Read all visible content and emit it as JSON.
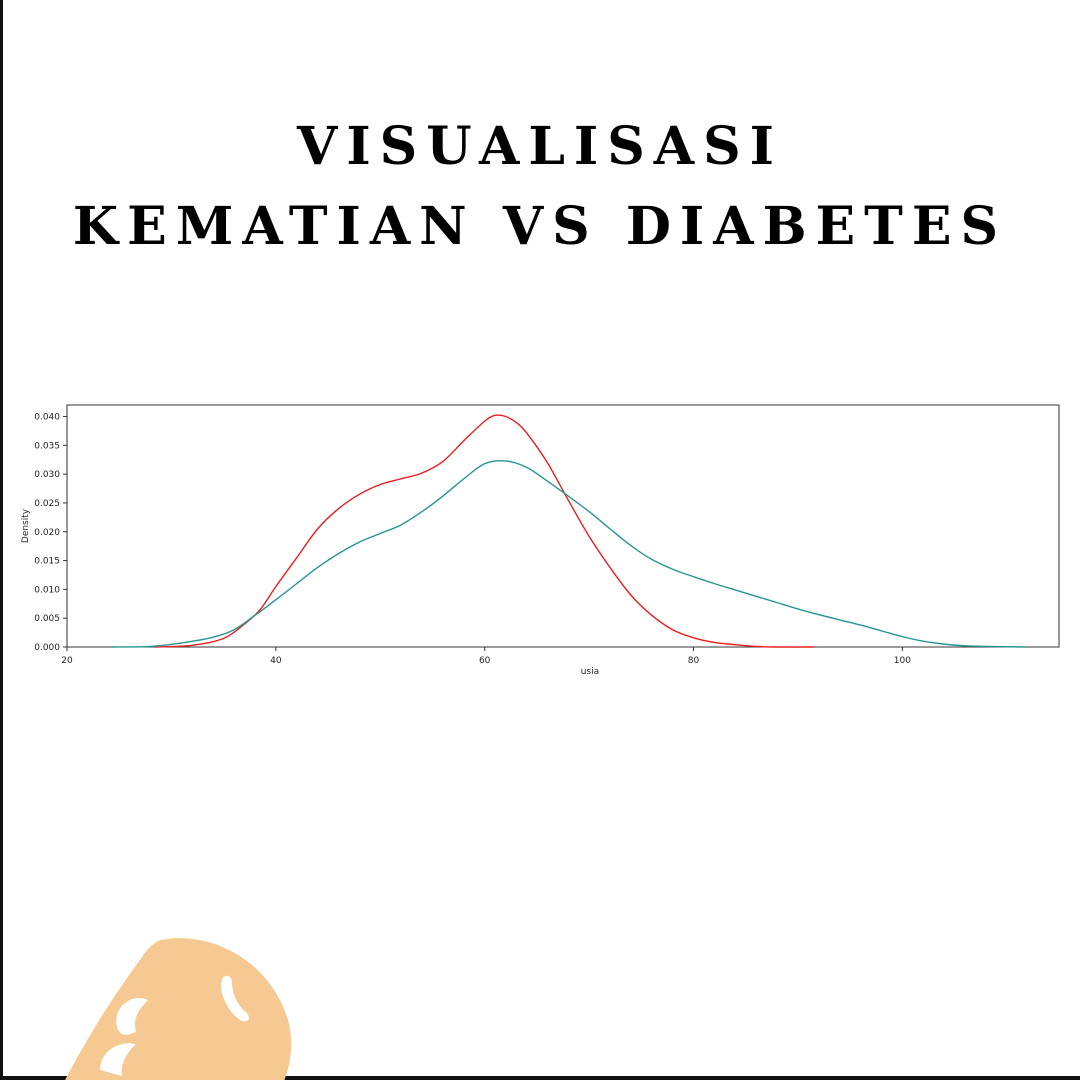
{
  "title": {
    "line1": "VISUALISASI",
    "line2": "KEMATIAN VS DIABETES"
  },
  "chart_data": {
    "type": "line",
    "xlabel": "usia",
    "ylabel": "Density",
    "xlim": [
      20,
      115
    ],
    "ylim": [
      0,
      0.042
    ],
    "xticks": [
      20,
      40,
      60,
      80,
      100
    ],
    "yticks": [
      0.0,
      0.005,
      0.01,
      0.015,
      0.02,
      0.025,
      0.03,
      0.035,
      0.04
    ],
    "ytick_labels": [
      "0.000",
      "0.005",
      "0.010",
      "0.015",
      "0.020",
      "0.025",
      "0.030",
      "0.035",
      "0.040"
    ],
    "grid": false,
    "legend": false,
    "series": [
      {
        "color": "#ee1c1c",
        "x": [
          28.5,
          32,
          35,
          37,
          38.5,
          40,
          42,
          44,
          46,
          48,
          50,
          52,
          54,
          56,
          58,
          60,
          61,
          62,
          63,
          64,
          66,
          68,
          70,
          72,
          74,
          76,
          78,
          80,
          82,
          84,
          86,
          88,
          91.5
        ],
        "y": [
          0.0,
          0.0003,
          0.0015,
          0.004,
          0.0065,
          0.0105,
          0.0155,
          0.0205,
          0.024,
          0.0265,
          0.0282,
          0.0292,
          0.0302,
          0.0322,
          0.0358,
          0.0392,
          0.0402,
          0.04,
          0.039,
          0.0372,
          0.032,
          0.0255,
          0.0192,
          0.0138,
          0.009,
          0.0055,
          0.003,
          0.0016,
          0.0008,
          0.0004,
          0.0001,
          0.0,
          0.0
        ]
      },
      {
        "color": "#259592",
        "x": [
          24.2,
          28,
          31,
          34,
          36,
          38,
          40,
          42,
          44,
          46,
          48,
          50,
          52,
          54,
          56,
          58,
          60,
          62,
          64,
          66,
          68,
          70,
          72,
          74,
          76,
          78,
          80,
          82,
          84,
          86,
          88,
          90,
          92,
          94,
          96,
          98,
          100,
          102,
          104,
          106,
          108,
          111.8
        ],
        "y": [
          0.0,
          0.0001,
          0.0007,
          0.0017,
          0.003,
          0.0055,
          0.0082,
          0.011,
          0.0138,
          0.0162,
          0.0182,
          0.0197,
          0.0212,
          0.0235,
          0.0262,
          0.0292,
          0.0318,
          0.0323,
          0.0312,
          0.0288,
          0.0262,
          0.0235,
          0.0205,
          0.0176,
          0.0152,
          0.0135,
          0.0122,
          0.011,
          0.0099,
          0.0088,
          0.0077,
          0.0066,
          0.0056,
          0.0047,
          0.0038,
          0.0028,
          0.0018,
          0.001,
          0.0005,
          0.0002,
          0.0001,
          0.0
        ]
      }
    ]
  },
  "logo": {
    "name": "mask-logo-icon",
    "color": "#f7c992"
  }
}
